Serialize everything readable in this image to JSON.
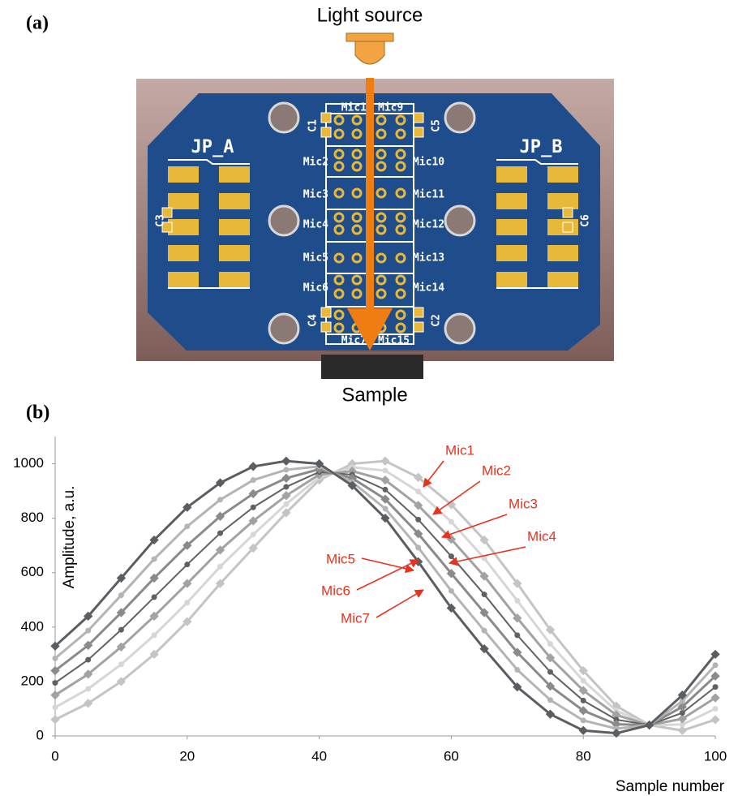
{
  "panel_a": {
    "label": "(a)",
    "light_source": "Light source",
    "sample": "Sample",
    "connectors": [
      "JP_A",
      "JP_B"
    ],
    "mics_left": [
      "Mic1",
      "Mic2",
      "Mic3",
      "Mic4",
      "Mic5",
      "Mic6",
      "Mic7"
    ],
    "mics_right": [
      "Mic9",
      "Mic10",
      "Mic11",
      "Mic12",
      "Mic13",
      "Mic14",
      "Mic15"
    ],
    "capacitors": [
      "C1",
      "C2",
      "C3",
      "C4",
      "C5",
      "C6"
    ]
  },
  "panel_b": {
    "label": "(b)"
  },
  "chart_data": {
    "type": "line",
    "x_label": "Sample number",
    "y_label": "Amplitude, a.u.",
    "x": [
      0,
      5,
      10,
      15,
      20,
      25,
      30,
      35,
      40,
      45,
      50,
      55,
      60,
      65,
      70,
      75,
      80,
      85,
      90,
      95,
      100
    ],
    "xlim": [
      0,
      100
    ],
    "xticks": [
      0,
      20,
      40,
      60,
      80,
      100
    ],
    "ylim": [
      0,
      1100
    ],
    "yticks": [
      0,
      200,
      400,
      600,
      800,
      1000
    ],
    "series": [
      {
        "name": "Mic1",
        "color": "#c4c4c4",
        "values": [
          60,
          120,
          200,
          300,
          420,
          560,
          690,
          820,
          940,
          1000,
          1010,
          950,
          850,
          720,
          560,
          390,
          240,
          110,
          40,
          20,
          60
        ]
      },
      {
        "name": "Mic2",
        "color": "#d6d6d6",
        "values": [
          105,
          173,
          263,
          370,
          490,
          622,
          740,
          852,
          950,
          987,
          975,
          898,
          787,
          653,
          497,
          338,
          203,
          93,
          40,
          42,
          100
        ]
      },
      {
        "name": "Mic3",
        "color": "#a2a2a2",
        "values": [
          150,
          227,
          327,
          440,
          560,
          683,
          790,
          883,
          960,
          973,
          940,
          847,
          723,
          587,
          433,
          287,
          167,
          77,
          40,
          63,
          140
        ]
      },
      {
        "name": "Mic4",
        "color": "#5e6264",
        "values": [
          195,
          280,
          390,
          510,
          630,
          745,
          840,
          915,
          970,
          960,
          905,
          795,
          660,
          520,
          370,
          235,
          130,
          60,
          40,
          85,
          180
        ]
      },
      {
        "name": "Mic5",
        "color": "#8a8a8a",
        "values": [
          240,
          333,
          453,
          580,
          700,
          807,
          890,
          947,
          980,
          947,
          870,
          743,
          597,
          453,
          307,
          183,
          93,
          43,
          40,
          107,
          220
        ]
      },
      {
        "name": "Mic6",
        "color": "#b4b4b4",
        "values": [
          285,
          387,
          517,
          650,
          770,
          868,
          940,
          978,
          990,
          933,
          835,
          692,
          533,
          387,
          243,
          132,
          57,
          27,
          40,
          128,
          260
        ]
      },
      {
        "name": "Mic7",
        "color": "#5a5e62",
        "values": [
          330,
          440,
          580,
          720,
          840,
          930,
          990,
          1010,
          1000,
          920,
          800,
          640,
          470,
          320,
          180,
          80,
          20,
          10,
          40,
          150,
          300
        ]
      }
    ],
    "annotation_color": "#e8321e"
  }
}
